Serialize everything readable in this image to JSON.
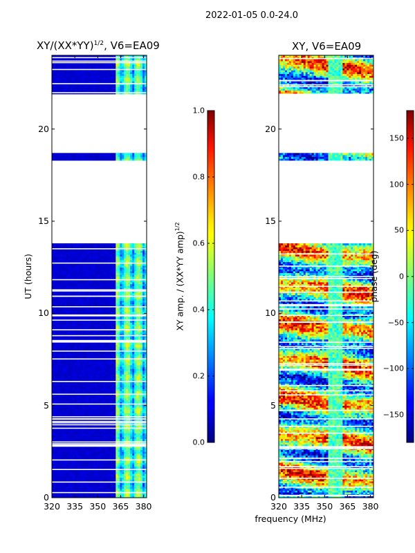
{
  "suptitle": "2022-01-05 0.0-24.0",
  "xlabel": "frequency (MHz)",
  "chart_data": [
    {
      "type": "heatmap",
      "title": "XY/(XX*YY)",
      "title_sup": "1/2",
      "title_suffix": ", V6=EA09",
      "xlabel": "frequency (MHz)",
      "ylabel": "UT (hours)",
      "xlim": [
        320,
        382
      ],
      "ylim": [
        0,
        24
      ],
      "x_ticks": [
        "320",
        "335",
        "350",
        "365",
        "380"
      ],
      "y_ticks": [
        "0",
        "5",
        "10",
        "15",
        "20"
      ],
      "colorbar": {
        "label": "XY amp. / (XX*YY amp)",
        "label_sup": "1/2",
        "range": [
          0.0,
          1.0
        ],
        "ticks": [
          "0.0",
          "0.2",
          "0.4",
          "0.6",
          "0.8",
          "1.0"
        ],
        "colormap": "jet"
      },
      "data_gaps_hours": [
        [
          13.8,
          18.3
        ],
        [
          18.7,
          21.9
        ]
      ]
    },
    {
      "type": "heatmap",
      "title": "XY, V6=EA09",
      "xlim": [
        320,
        382
      ],
      "ylim": [
        0,
        24
      ],
      "x_ticks": [
        "320",
        "335",
        "350",
        "365",
        "380"
      ],
      "y_ticks": [
        "0",
        "5",
        "10",
        "15",
        "20"
      ],
      "colorbar": {
        "label": "phase (deg)",
        "range": [
          -180,
          180
        ],
        "ticks": [
          "−150",
          "−100",
          "−50",
          "0",
          "50",
          "100",
          "150"
        ],
        "colormap": "jet"
      },
      "data_gaps_hours": [
        [
          13.8,
          18.3
        ],
        [
          18.7,
          21.9
        ]
      ]
    }
  ]
}
